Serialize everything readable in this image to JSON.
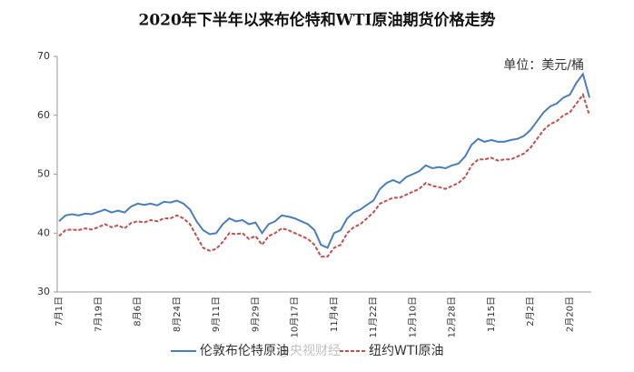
{
  "chart_data": {
    "type": "line",
    "title": "2020年下半年以来布伦特和WTI原油期货价格走势",
    "unit_label": "单位：美元/桶",
    "watermark": "@央视财经",
    "categories": [
      "7月1日",
      null,
      null,
      null,
      null,
      null,
      "7月19日",
      null,
      null,
      null,
      null,
      null,
      "8月6日",
      null,
      null,
      null,
      null,
      null,
      "8月24日",
      null,
      null,
      null,
      null,
      null,
      "9月11日",
      null,
      null,
      null,
      null,
      null,
      "9月29日",
      null,
      null,
      null,
      null,
      null,
      "10月17日",
      null,
      null,
      null,
      null,
      null,
      "11月4日",
      null,
      null,
      null,
      null,
      null,
      "11月22日",
      null,
      null,
      null,
      null,
      null,
      "12月10日",
      null,
      null,
      null,
      null,
      null,
      "12月28日",
      null,
      null,
      null,
      null,
      null,
      "1月15日",
      null,
      null,
      null,
      null,
      null,
      "2月2日",
      null,
      null,
      null,
      null,
      null,
      "2月20日",
      null,
      null,
      null
    ],
    "series": [
      {
        "name": "伦敦布伦特原油",
        "color": "#4a7ebb",
        "dash": false,
        "values": [
          42.0,
          43.0,
          43.2,
          43.0,
          43.3,
          43.2,
          43.6,
          44.0,
          43.5,
          43.8,
          43.5,
          44.5,
          45.0,
          44.8,
          45.0,
          44.7,
          45.3,
          45.2,
          45.5,
          45.0,
          44.0,
          42.0,
          40.5,
          39.8,
          40.0,
          41.5,
          42.5,
          42.0,
          42.2,
          41.5,
          41.8,
          40.0,
          41.5,
          42.0,
          43.0,
          42.8,
          42.5,
          42.0,
          41.5,
          40.5,
          38.0,
          37.5,
          40.0,
          40.5,
          42.5,
          43.5,
          44.0,
          44.8,
          45.5,
          47.5,
          48.5,
          49.0,
          48.5,
          49.5,
          50.0,
          50.5,
          51.5,
          51.0,
          51.2,
          51.0,
          51.5,
          51.8,
          53.0,
          55.0,
          56.0,
          55.5,
          55.8,
          55.5,
          55.5,
          55.8,
          56.0,
          56.5,
          57.5,
          59.0,
          60.5,
          61.5,
          62.0,
          63.0,
          63.5,
          65.5,
          67.0,
          63.0
        ]
      },
      {
        "name": "纽约WTI原油",
        "color": "#c0504d",
        "dash": true,
        "values": [
          39.5,
          40.5,
          40.6,
          40.5,
          40.8,
          40.6,
          41.0,
          41.5,
          41.0,
          41.3,
          40.8,
          41.7,
          42.0,
          41.8,
          42.2,
          42.0,
          42.5,
          42.5,
          43.0,
          42.5,
          41.5,
          39.5,
          37.5,
          37.0,
          37.3,
          38.5,
          40.0,
          39.8,
          40.0,
          39.0,
          39.5,
          38.0,
          39.5,
          40.0,
          40.8,
          40.5,
          40.0,
          39.5,
          39.0,
          38.0,
          36.0,
          36.0,
          37.5,
          38.0,
          40.0,
          41.0,
          41.5,
          42.5,
          43.5,
          45.0,
          45.5,
          46.0,
          46.0,
          46.5,
          47.0,
          47.5,
          48.5,
          48.0,
          47.8,
          47.5,
          48.0,
          48.5,
          49.5,
          51.5,
          52.5,
          52.5,
          52.8,
          52.3,
          52.5,
          52.5,
          53.0,
          53.5,
          54.5,
          56.0,
          57.5,
          58.5,
          59.0,
          60.0,
          60.5,
          62.0,
          63.5,
          60.0
        ]
      }
    ],
    "ylim": [
      30,
      70
    ],
    "yticks": [
      30,
      40,
      50,
      60,
      70
    ],
    "grid": false
  }
}
